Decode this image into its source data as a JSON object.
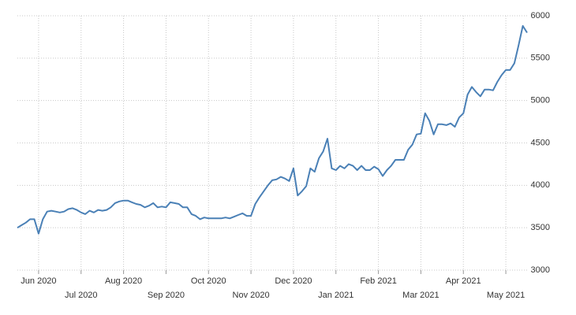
{
  "chart_data": {
    "type": "line",
    "categories": [
      null,
      null,
      null,
      null,
      null,
      "Jun 2020",
      null,
      null,
      null,
      null,
      null,
      null,
      null,
      null,
      null,
      "Jul 2020",
      null,
      null,
      null,
      null,
      null,
      null,
      null,
      null,
      null,
      "Aug 2020",
      null,
      null,
      null,
      null,
      null,
      null,
      null,
      null,
      null,
      "Sep 2020",
      null,
      null,
      null,
      null,
      null,
      null,
      null,
      null,
      null,
      "Oct 2020",
      null,
      null,
      null,
      null,
      null,
      null,
      null,
      null,
      null,
      "Nov 2020",
      null,
      null,
      null,
      null,
      null,
      null,
      null,
      null,
      null,
      "Dec 2020",
      null,
      null,
      null,
      null,
      null,
      null,
      null,
      null,
      null,
      "Jan 2021",
      null,
      null,
      null,
      null,
      null,
      null,
      null,
      null,
      null,
      "Feb 2021",
      null,
      null,
      null,
      null,
      null,
      null,
      null,
      null,
      null,
      "Mar 2021",
      null,
      null,
      null,
      null,
      null,
      null,
      null,
      null,
      null,
      "Apr 2021",
      null,
      null,
      null,
      null,
      null,
      null,
      null,
      null,
      null,
      "May 2021",
      null,
      null,
      null,
      null,
      null
    ],
    "values": [
      3500,
      3530,
      3560,
      3600,
      3600,
      3430,
      3600,
      3690,
      3700,
      3690,
      3680,
      3690,
      3720,
      3730,
      3710,
      3680,
      3660,
      3700,
      3680,
      3710,
      3700,
      3710,
      3740,
      3790,
      3810,
      3820,
      3820,
      3800,
      3780,
      3770,
      3740,
      3760,
      3790,
      3740,
      3750,
      3740,
      3800,
      3790,
      3780,
      3740,
      3740,
      3660,
      3640,
      3600,
      3620,
      3610,
      3610,
      3610,
      3610,
      3620,
      3610,
      3630,
      3650,
      3670,
      3640,
      3640,
      3780,
      3860,
      3930,
      4000,
      4060,
      4070,
      4100,
      4080,
      4050,
      4200,
      3880,
      3930,
      3990,
      4200,
      4160,
      4320,
      4400,
      4550,
      4200,
      4180,
      4230,
      4200,
      4250,
      4230,
      4180,
      4230,
      4180,
      4180,
      4220,
      4190,
      4110,
      4180,
      4230,
      4300,
      4300,
      4300,
      4420,
      4480,
      4600,
      4610,
      4850,
      4760,
      4600,
      4720,
      4720,
      4710,
      4730,
      4690,
      4800,
      4850,
      5070,
      5160,
      5100,
      5050,
      5130,
      5130,
      5120,
      5220,
      5300,
      5360,
      5360,
      5440,
      5650,
      5880,
      5800
    ],
    "color": "#4a80b6",
    "ylim": [
      3000,
      6000
    ],
    "yticks": [
      3000,
      3500,
      4000,
      4500,
      5000,
      5500,
      6000
    ],
    "grid": true
  }
}
